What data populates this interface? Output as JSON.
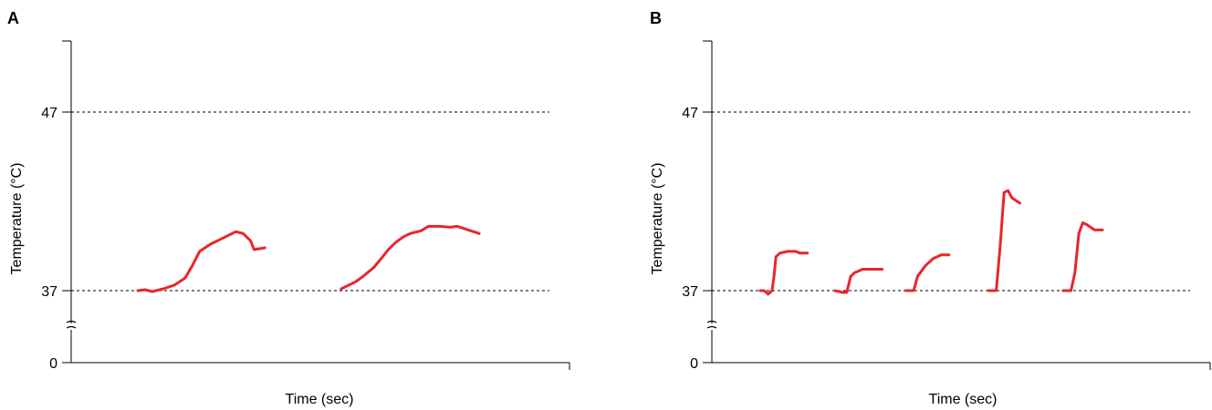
{
  "chart_data": [
    {
      "panel": "A",
      "type": "line",
      "xlabel": "Time (sec)",
      "ylabel": "Temperature (°C)",
      "y_ticks": [
        "0",
        "37",
        "47"
      ],
      "reference_lines": [
        37,
        47
      ],
      "axis_break": true,
      "color": "#e8262d",
      "series": [
        {
          "points": [
            [
              0.0,
              37.0
            ],
            [
              0.02,
              37.05
            ],
            [
              0.04,
              36.95
            ],
            [
              0.07,
              37.1
            ],
            [
              0.1,
              37.3
            ],
            [
              0.13,
              37.7
            ],
            [
              0.15,
              38.4
            ],
            [
              0.17,
              39.2
            ],
            [
              0.2,
              39.6
            ],
            [
              0.23,
              39.9
            ],
            [
              0.25,
              40.1
            ],
            [
              0.27,
              40.3
            ],
            [
              0.29,
              40.2
            ],
            [
              0.31,
              39.8
            ],
            [
              0.32,
              39.3
            ],
            [
              0.35,
              39.4
            ]
          ]
        },
        {
          "points": [
            [
              0.56,
              37.1
            ],
            [
              0.58,
              37.3
            ],
            [
              0.6,
              37.5
            ],
            [
              0.62,
              37.8
            ],
            [
              0.65,
              38.3
            ],
            [
              0.67,
              38.8
            ],
            [
              0.69,
              39.3
            ],
            [
              0.71,
              39.7
            ],
            [
              0.73,
              40.0
            ],
            [
              0.75,
              40.2
            ],
            [
              0.78,
              40.35
            ],
            [
              0.8,
              40.6
            ],
            [
              0.83,
              40.6
            ],
            [
              0.86,
              40.55
            ],
            [
              0.88,
              40.6
            ],
            [
              0.91,
              40.4
            ],
            [
              0.94,
              40.2
            ]
          ]
        }
      ]
    },
    {
      "panel": "B",
      "type": "line",
      "xlabel": "Time (sec)",
      "ylabel": "Temperature (°C)",
      "y_ticks": [
        "0",
        "37",
        "47"
      ],
      "reference_lines": [
        37,
        47
      ],
      "axis_break": true,
      "color": "#e8262d",
      "series": [
        {
          "points": [
            [
              0.0,
              37.0
            ],
            [
              0.01,
              37.0
            ],
            [
              0.02,
              36.8
            ],
            [
              0.03,
              37.0
            ],
            [
              0.035,
              37.8
            ],
            [
              0.04,
              38.9
            ],
            [
              0.05,
              39.1
            ],
            [
              0.07,
              39.2
            ],
            [
              0.09,
              39.2
            ],
            [
              0.1,
              39.1
            ],
            [
              0.12,
              39.1
            ]
          ]
        },
        {
          "points": [
            [
              0.19,
              37.0
            ],
            [
              0.21,
              36.9
            ],
            [
              0.22,
              36.9
            ],
            [
              0.23,
              37.8
            ],
            [
              0.24,
              38.0
            ],
            [
              0.26,
              38.2
            ],
            [
              0.28,
              38.2
            ],
            [
              0.31,
              38.2
            ]
          ]
        },
        {
          "points": [
            [
              0.37,
              37.0
            ],
            [
              0.39,
              37.0
            ],
            [
              0.4,
              37.8
            ],
            [
              0.42,
              38.4
            ],
            [
              0.44,
              38.8
            ],
            [
              0.46,
              39.0
            ],
            [
              0.48,
              39.0
            ]
          ]
        },
        {
          "points": [
            [
              0.58,
              37.0
            ],
            [
              0.6,
              37.0
            ],
            [
              0.61,
              39.5
            ],
            [
              0.62,
              42.5
            ],
            [
              0.63,
              42.6
            ],
            [
              0.64,
              42.2
            ],
            [
              0.66,
              41.9
            ]
          ]
        },
        {
          "points": [
            [
              0.77,
              37.0
            ],
            [
              0.79,
              37.0
            ],
            [
              0.8,
              38.0
            ],
            [
              0.81,
              40.2
            ],
            [
              0.82,
              40.8
            ],
            [
              0.83,
              40.7
            ],
            [
              0.85,
              40.4
            ],
            [
              0.87,
              40.4
            ]
          ]
        }
      ]
    }
  ]
}
